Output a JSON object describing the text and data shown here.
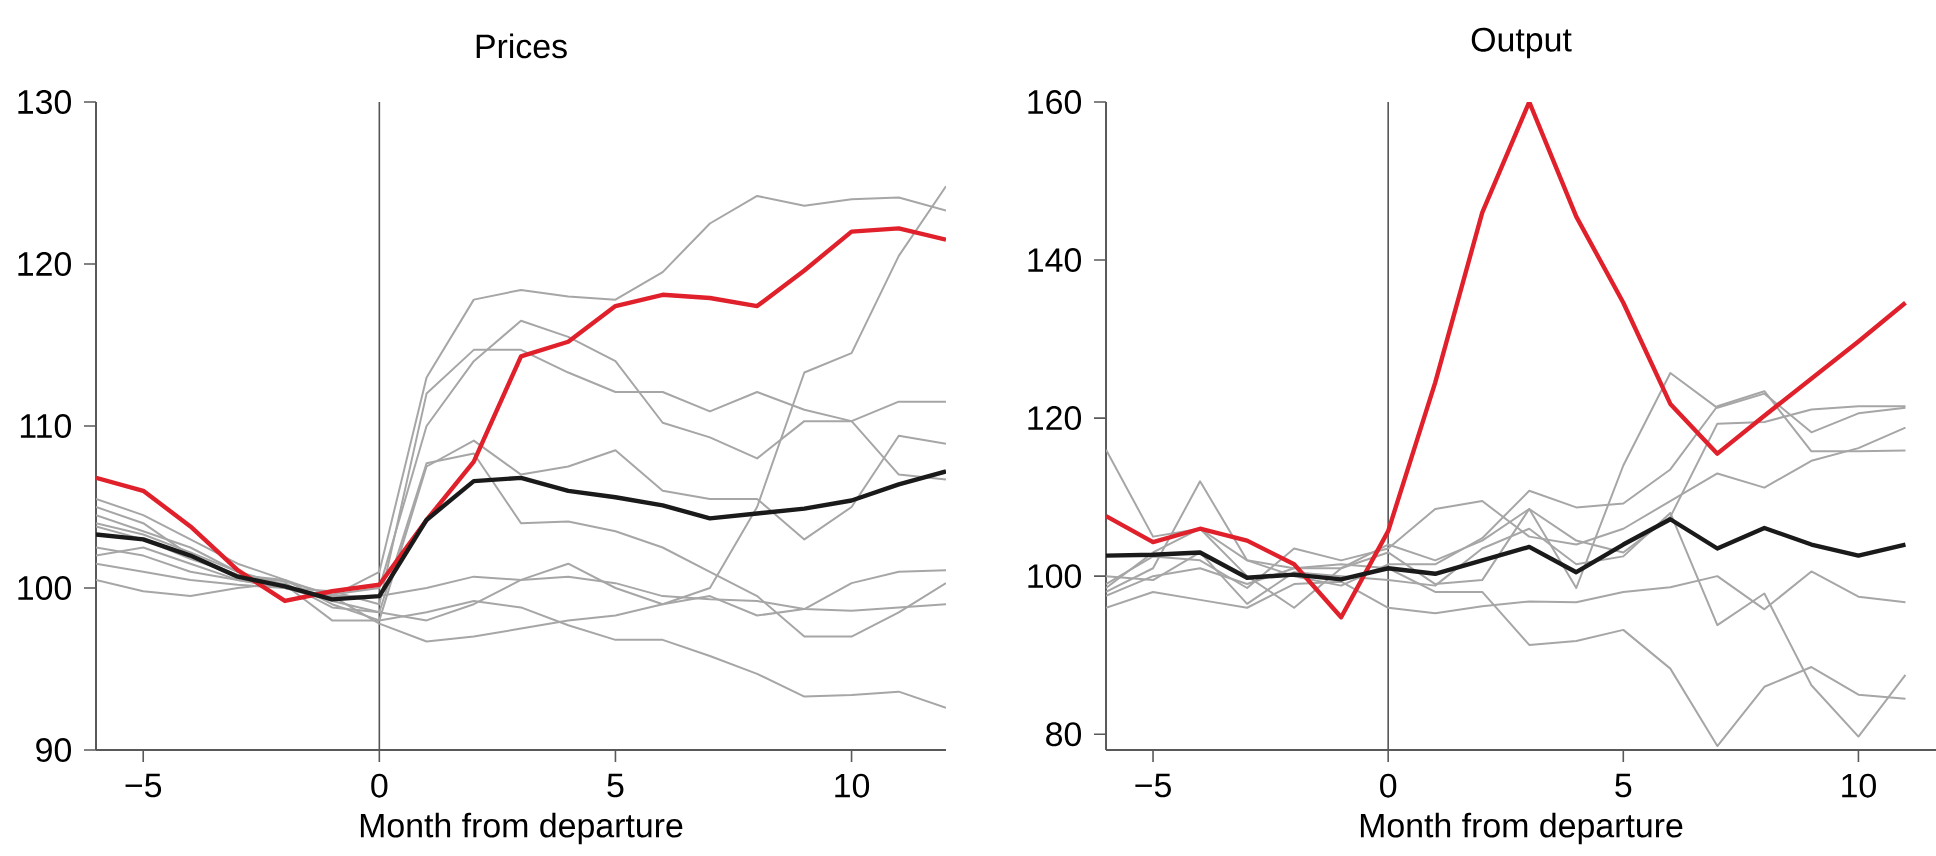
{
  "chart_data": [
    {
      "type": "line",
      "title": "Prices",
      "xlabel": "Month from departure",
      "x": [
        -6,
        -5,
        -4,
        -3,
        -2,
        -1,
        0,
        1,
        2,
        3,
        4,
        5,
        6,
        7,
        8,
        9,
        10,
        11,
        12
      ],
      "xlim": [
        -6,
        12
      ],
      "xticks": [
        {
          "value": -5,
          "label": "−5"
        },
        0,
        5,
        10
      ],
      "ylim": [
        90,
        130
      ],
      "yticks": [
        90,
        100,
        110,
        120,
        130
      ],
      "marker": "none",
      "ref_lines": [
        {
          "axis": "x",
          "value": 0,
          "color": "#555555"
        }
      ],
      "series": [
        {
          "color": "#a6a6a6",
          "values": [
            105.5,
            104.5,
            103,
            101.5,
            100.5,
            99.5,
            101,
            113,
            117.8,
            118.4,
            118,
            117.8,
            119.5,
            122.5,
            124.2,
            123.6,
            124,
            124.1,
            123.3
          ]
        },
        {
          "color": "#a6a6a6",
          "values": [
            100.5,
            99.8,
            99.5,
            100,
            100.3,
            98.8,
            98.5,
            98,
            99,
            100.5,
            101.5,
            100,
            99,
            100,
            105,
            113.3,
            114.5,
            120.5,
            124.8
          ]
        },
        {
          "color": "#a6a6a6",
          "values": [
            104.5,
            103.5,
            102.5,
            101,
            100,
            99.8,
            99,
            112,
            114.7,
            114.7,
            113.3,
            112.1,
            112.1,
            110.9,
            112.1,
            111,
            110.3,
            107,
            106.7
          ]
        },
        {
          "color": "#a6a6a6",
          "values": [
            105,
            104,
            102,
            100.8,
            100.4,
            99.6,
            100,
            110,
            114,
            116.5,
            115.5,
            114,
            110.2,
            109.3,
            108,
            110.3,
            110.3,
            111.5,
            111.5
          ]
        },
        {
          "color": "#a6a6a6",
          "values": [
            104,
            103.3,
            102.2,
            101,
            100.2,
            98,
            98,
            107.5,
            109.1,
            107,
            107.5,
            108.5,
            106,
            105.5,
            105.5,
            103,
            105,
            109.4,
            108.9
          ]
        },
        {
          "color": "#a6a6a6",
          "values": [
            102,
            102.5,
            101.5,
            100.5,
            100,
            99.2,
            98.5,
            107.7,
            108.3,
            104,
            104.1,
            103.5,
            102.5,
            101,
            99.5,
            97,
            97,
            98.5,
            100.3
          ]
        },
        {
          "color": "#a6a6a6",
          "values": [
            101.5,
            101,
            100.5,
            100.2,
            100,
            99.5,
            97.8,
            96.7,
            97,
            97.5,
            98,
            98.3,
            99,
            99.5,
            98.3,
            98.7,
            100.3,
            101,
            101.1
          ]
        },
        {
          "color": "#a6a6a6",
          "values": [
            103.8,
            103,
            101.8,
            100.8,
            100.5,
            99,
            98,
            98.5,
            99.2,
            98.8,
            97.7,
            96.8,
            96.8,
            95.8,
            94.7,
            93.3,
            93.4,
            93.6,
            92.6
          ]
        },
        {
          "color": "#a6a6a6",
          "values": [
            102.5,
            102,
            101,
            100.5,
            100,
            99.5,
            99.5,
            100,
            100.7,
            100.5,
            100.7,
            100.3,
            99.5,
            99.3,
            99.2,
            98.7,
            98.6,
            98.8,
            99
          ]
        },
        {
          "color": "#e0202a",
          "values": [
            106.8,
            106,
            103.8,
            101.1,
            99.2,
            99.8,
            100.2,
            104.2,
            107.8,
            114.3,
            115.2,
            117.4,
            118.1,
            117.9,
            117.4,
            119.6,
            122,
            122.2,
            121.5
          ]
        },
        {
          "color": "#1a1a1a",
          "values": [
            103.3,
            103,
            102,
            100.7,
            100.1,
            99.3,
            99.5,
            104.2,
            106.6,
            106.8,
            106,
            105.6,
            105.1,
            104.3,
            104.6,
            104.9,
            105.4,
            106.4,
            107.2
          ]
        }
      ]
    },
    {
      "type": "line",
      "title": "Output",
      "xlabel": "Month from departure",
      "x": [
        -6,
        -5,
        -4,
        -3,
        -2,
        -1,
        0,
        1,
        2,
        3,
        4,
        5,
        6,
        7,
        8,
        9,
        10,
        11
      ],
      "xlim": [
        -6,
        11.65
      ],
      "xticks": [
        {
          "value": -5,
          "label": "−5"
        },
        0,
        5,
        10
      ],
      "ylim": [
        78,
        160
      ],
      "yticks": [
        80,
        100,
        120,
        140,
        160
      ],
      "marker": "none",
      "ref_lines": [
        {
          "axis": "x",
          "value": 0,
          "color": "#555555"
        }
      ],
      "series": [
        {
          "color": "#a6a6a6",
          "values": [
            116,
            105,
            106,
            102,
            101,
            101,
            104,
            102,
            104.5,
            108.5,
            98.5,
            114,
            125.7,
            121.3,
            123.1,
            118.2,
            120.6,
            121.3
          ]
        },
        {
          "color": "#a6a6a6",
          "values": [
            98,
            101,
            112,
            102,
            100,
            98.8,
            101.5,
            101.5,
            104.8,
            110.8,
            108.7,
            109.2,
            113.5,
            121.5,
            123.4,
            115.8,
            115.8,
            115.9
          ]
        },
        {
          "color": "#a6a6a6",
          "values": [
            99,
            102.5,
            102,
            98.5,
            103.5,
            102,
            103.5,
            108.5,
            109.5,
            105,
            104,
            106,
            109.5,
            113,
            111.2,
            114.6,
            116.2,
            118.8
          ]
        },
        {
          "color": "#a6a6a6",
          "values": [
            97.5,
            100,
            101,
            99,
            101,
            101.5,
            101,
            98,
            98,
            91.3,
            91.8,
            93.2,
            88.3,
            78.5,
            86,
            88.5,
            85,
            84.5
          ]
        },
        {
          "color": "#a6a6a6",
          "values": [
            96,
            98,
            97,
            96,
            99,
            99.3,
            96,
            95.3,
            96.2,
            96.8,
            96.7,
            98,
            98.6,
            100,
            95.8,
            100.6,
            97.4,
            96.7
          ]
        },
        {
          "color": "#a6a6a6",
          "values": [
            100,
            99.5,
            103,
            96.5,
            100.5,
            100,
            99.5,
            98.8,
            103.5,
            106,
            101.5,
            102.5,
            108,
            93.8,
            97.8,
            86.2,
            79.7,
            87.5
          ]
        },
        {
          "color": "#a6a6a6",
          "values": [
            98.5,
            103,
            106,
            100,
            96,
            101,
            103,
            99,
            99.5,
            108.5,
            104.5,
            103,
            107.5,
            119.3,
            119.5,
            121.1,
            121.5,
            121.5
          ]
        },
        {
          "color": "#e0202a",
          "values": [
            107.6,
            104.3,
            106,
            104.5,
            101.5,
            94.8,
            105.7,
            124.5,
            146,
            160,
            145.5,
            134.6,
            121.8,
            115.5,
            120.3,
            125,
            129.7,
            134.6
          ]
        },
        {
          "color": "#1a1a1a",
          "values": [
            102.6,
            102.7,
            103,
            99.8,
            100.2,
            99.6,
            101,
            100.3,
            102,
            103.7,
            100.5,
            104,
            107.2,
            103.5,
            106.1,
            104,
            102.6,
            104
          ]
        }
      ]
    }
  ]
}
